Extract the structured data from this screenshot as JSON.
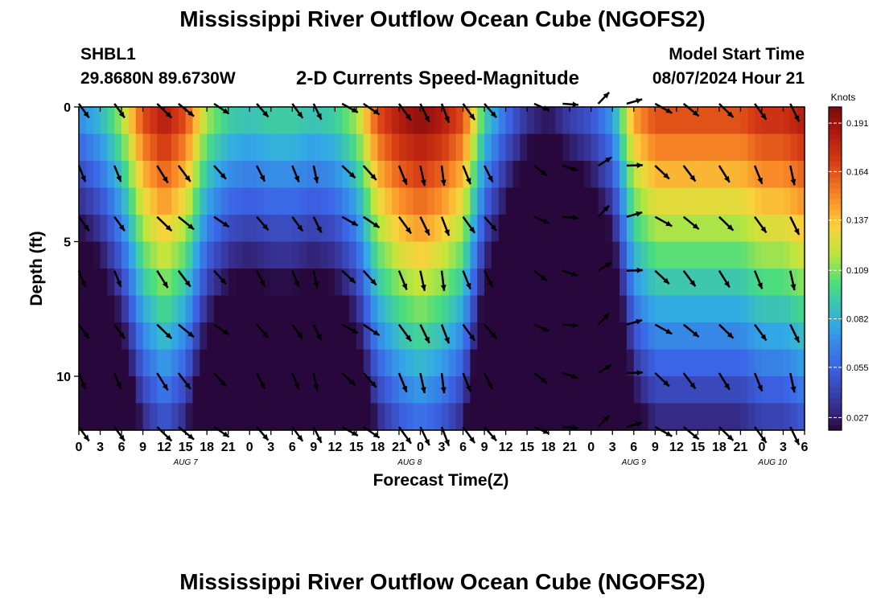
{
  "header": {
    "title": "Mississippi River Outflow Ocean Cube (NGOFS2)",
    "station": "SHBL1",
    "coords": "29.8680N  89.6730W",
    "subtitle": "2-D Currents Speed-Magnitude",
    "model_label": "Model Start Time",
    "model_time": "08/07/2024 Hour 21"
  },
  "footer": {
    "title": "Mississippi River Outflow Ocean Cube (NGOFS2)"
  },
  "chart_data": {
    "type": "heatmap",
    "title": "2-D Currents Speed-Magnitude",
    "xlabel": "Forecast Time(Z)",
    "ylabel": "Depth (ft)",
    "x_range_hours": [
      0,
      102
    ],
    "y_range_ft": [
      0,
      12
    ],
    "x_tick_hours": [
      0,
      3,
      6,
      9,
      12,
      15,
      18,
      21,
      24,
      27,
      30,
      33,
      36,
      39,
      42,
      45,
      48,
      51,
      54,
      57,
      60,
      63,
      66,
      69,
      72,
      75,
      78,
      81,
      84,
      87,
      90,
      93,
      96,
      99,
      102
    ],
    "x_tick_labels": [
      "0",
      "3",
      "6",
      "9",
      "12",
      "15",
      "18",
      "21",
      "0",
      "3",
      "6",
      "9",
      "12",
      "15",
      "18",
      "21",
      "0",
      "3",
      "6",
      "9",
      "12",
      "15",
      "18",
      "21",
      "0",
      "3",
      "6",
      "9",
      "12",
      "15",
      "18",
      "21",
      "0",
      "3",
      "6"
    ],
    "date_labels": [
      {
        "label": "AUG 7",
        "hour": 15
      },
      {
        "label": "AUG 8",
        "hour": 46.5
      },
      {
        "label": "AUG 9",
        "hour": 78
      },
      {
        "label": "AUG 10",
        "hour": 97.5
      }
    ],
    "y_ticks": [
      0,
      5,
      10
    ],
    "colorbar": {
      "unit": "Knots",
      "min": 0.02,
      "max": 0.2,
      "tick_values": [
        0.191,
        0.164,
        0.137,
        0.109,
        0.082,
        0.055,
        0.027
      ],
      "tick_labels": [
        "0.191",
        "0.164",
        "0.137",
        "0.109",
        "0.082",
        "0.055",
        "0.027"
      ]
    },
    "speed_profile_hours": [
      0,
      3,
      6,
      9,
      12,
      15,
      18,
      21,
      24,
      27,
      30,
      33,
      36,
      39,
      42,
      45,
      48,
      51,
      54,
      57,
      60,
      63,
      66,
      69,
      72,
      75,
      78,
      81,
      84,
      87,
      90,
      93,
      96,
      99,
      102
    ],
    "speed_at_surface_knots": [
      0.075,
      0.09,
      0.12,
      0.17,
      0.19,
      0.17,
      0.12,
      0.1,
      0.095,
      0.1,
      0.1,
      0.095,
      0.1,
      0.12,
      0.17,
      0.19,
      0.2,
      0.19,
      0.17,
      0.1,
      0.065,
      0.04,
      0.03,
      0.045,
      0.055,
      0.08,
      0.15,
      0.17,
      0.17,
      0.17,
      0.17,
      0.17,
      0.18,
      0.18,
      0.19
    ],
    "speed_depth_decay_per_ft": 0.012,
    "arrow_times_hours": [
      0,
      5,
      11,
      14,
      19,
      25,
      30,
      33,
      37,
      40,
      45,
      48,
      51,
      54,
      57,
      64,
      68,
      73,
      77,
      81,
      85,
      90,
      95,
      100
    ],
    "arrow_depths_ft": [
      0,
      2.3,
      4.2,
      6.2,
      8.2,
      10.0,
      12.0
    ],
    "arrow_dir_deg_by_time": [
      150,
      150,
      140,
      135,
      130,
      145,
      150,
      160,
      125,
      130,
      150,
      160,
      165,
      150,
      145,
      120,
      100,
      50,
      80,
      125,
      135,
      140,
      150,
      160
    ],
    "arrow_speed_knots_by_time": [
      0.09,
      0.09,
      0.18,
      0.17,
      0.11,
      0.1,
      0.1,
      0.1,
      0.11,
      0.15,
      0.19,
      0.19,
      0.18,
      0.17,
      0.12,
      0.06,
      0.04,
      0.04,
      0.05,
      0.15,
      0.16,
      0.16,
      0.16,
      0.17
    ]
  }
}
